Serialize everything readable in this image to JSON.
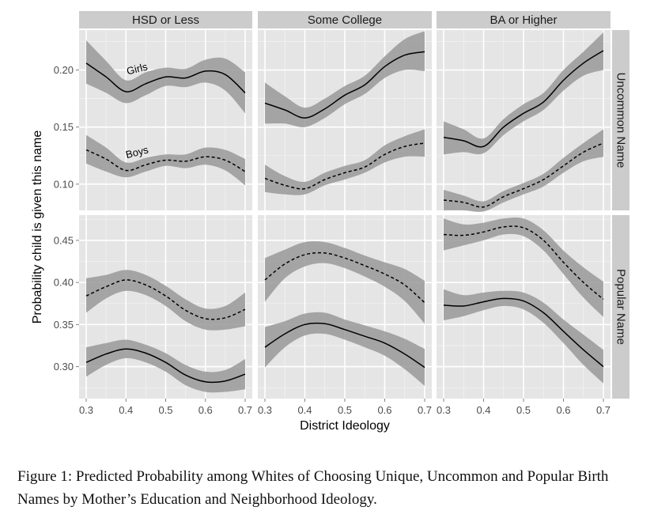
{
  "chart_data": {
    "type": "line",
    "layout": "facet-grid",
    "ylabel": "Probability child is given this name",
    "xlabel": "District Ideology",
    "columns": [
      "HSD or Less",
      "Some College",
      "BA or Higher"
    ],
    "rows": [
      "Uncommon Name",
      "Popular Name"
    ],
    "x_ticks": [
      "0.3",
      "0.4",
      "0.5",
      "0.6",
      "0.7"
    ],
    "xlim": [
      0.3,
      0.7
    ],
    "grid": true,
    "panels": [
      {
        "row": "Uncommon Name",
        "ylim": [
          0.077,
          0.235
        ],
        "y_ticks": [
          0.1,
          0.15,
          0.2
        ],
        "y_tick_labels": [
          "0.10",
          "0.15",
          "0.20"
        ],
        "annotations": [
          {
            "text": "Girls",
            "column": "HSD or Less",
            "x": 0.43,
            "y": 0.198
          },
          {
            "text": "Boys",
            "column": "HSD or Less",
            "x": 0.43,
            "y": 0.125
          }
        ]
      },
      {
        "row": "Popular Name",
        "ylim": [
          0.262,
          0.48
        ],
        "y_ticks": [
          0.3,
          0.35,
          0.4,
          0.45
        ],
        "y_tick_labels": [
          "0.30",
          "0.35",
          "0.40",
          "0.45"
        ],
        "annotations": []
      }
    ],
    "x": [
      0.3,
      0.35,
      0.4,
      0.45,
      0.5,
      0.55,
      0.6,
      0.65,
      0.7
    ],
    "series": [
      {
        "row": "Uncommon Name",
        "column": "HSD or Less",
        "linestyle": "solid",
        "values": [
          0.206,
          0.194,
          0.181,
          0.188,
          0.194,
          0.193,
          0.199,
          0.196,
          0.18
        ],
        "lower": [
          0.188,
          0.18,
          0.171,
          0.178,
          0.186,
          0.185,
          0.189,
          0.182,
          0.162
        ],
        "upper": [
          0.226,
          0.208,
          0.191,
          0.198,
          0.202,
          0.201,
          0.209,
          0.21,
          0.198
        ]
      },
      {
        "row": "Uncommon Name",
        "column": "HSD or Less",
        "linestyle": "dashed",
        "values": [
          0.13,
          0.122,
          0.112,
          0.117,
          0.121,
          0.12,
          0.124,
          0.121,
          0.111
        ],
        "lower": [
          0.118,
          0.111,
          0.106,
          0.111,
          0.116,
          0.114,
          0.117,
          0.112,
          0.099
        ],
        "upper": [
          0.143,
          0.132,
          0.119,
          0.123,
          0.126,
          0.126,
          0.132,
          0.13,
          0.122
        ]
      },
      {
        "row": "Uncommon Name",
        "column": "Some College",
        "linestyle": "solid",
        "values": [
          0.171,
          0.165,
          0.158,
          0.166,
          0.178,
          0.187,
          0.203,
          0.213,
          0.216
        ],
        "lower": [
          0.153,
          0.153,
          0.15,
          0.158,
          0.17,
          0.179,
          0.193,
          0.2,
          0.199
        ],
        "upper": [
          0.189,
          0.177,
          0.167,
          0.175,
          0.186,
          0.195,
          0.212,
          0.227,
          0.234
        ]
      },
      {
        "row": "Uncommon Name",
        "column": "Some College",
        "linestyle": "dashed",
        "values": [
          0.105,
          0.099,
          0.096,
          0.104,
          0.11,
          0.115,
          0.126,
          0.133,
          0.136
        ],
        "lower": [
          0.093,
          0.091,
          0.091,
          0.099,
          0.104,
          0.11,
          0.119,
          0.124,
          0.124
        ],
        "upper": [
          0.117,
          0.107,
          0.102,
          0.11,
          0.116,
          0.121,
          0.134,
          0.142,
          0.148
        ]
      },
      {
        "row": "Uncommon Name",
        "column": "BA or Higher",
        "linestyle": "solid",
        "values": [
          0.141,
          0.138,
          0.133,
          0.15,
          0.162,
          0.172,
          0.191,
          0.206,
          0.217
        ],
        "lower": [
          0.126,
          0.128,
          0.127,
          0.143,
          0.155,
          0.165,
          0.182,
          0.195,
          0.2
        ],
        "upper": [
          0.155,
          0.148,
          0.14,
          0.157,
          0.17,
          0.18,
          0.2,
          0.216,
          0.233
        ]
      },
      {
        "row": "Uncommon Name",
        "column": "BA or Higher",
        "linestyle": "dashed",
        "values": [
          0.086,
          0.084,
          0.08,
          0.089,
          0.096,
          0.104,
          0.116,
          0.128,
          0.136
        ],
        "lower": [
          0.077,
          0.077,
          0.076,
          0.084,
          0.091,
          0.098,
          0.11,
          0.12,
          0.124
        ],
        "upper": [
          0.095,
          0.09,
          0.085,
          0.094,
          0.101,
          0.109,
          0.123,
          0.136,
          0.148
        ]
      },
      {
        "row": "Popular Name",
        "column": "HSD or Less",
        "linestyle": "solid",
        "values": [
          0.305,
          0.315,
          0.321,
          0.316,
          0.305,
          0.29,
          0.282,
          0.283,
          0.291
        ],
        "lower": [
          0.288,
          0.302,
          0.31,
          0.305,
          0.294,
          0.278,
          0.27,
          0.27,
          0.273
        ],
        "upper": [
          0.323,
          0.328,
          0.332,
          0.326,
          0.316,
          0.302,
          0.294,
          0.296,
          0.309
        ]
      },
      {
        "row": "Popular Name",
        "column": "HSD or Less",
        "linestyle": "dashed",
        "values": [
          0.384,
          0.395,
          0.403,
          0.397,
          0.384,
          0.367,
          0.357,
          0.358,
          0.368
        ],
        "lower": [
          0.364,
          0.381,
          0.39,
          0.385,
          0.372,
          0.354,
          0.344,
          0.344,
          0.348
        ],
        "upper": [
          0.405,
          0.409,
          0.415,
          0.409,
          0.396,
          0.38,
          0.369,
          0.372,
          0.388
        ]
      },
      {
        "row": "Popular Name",
        "column": "Some College",
        "linestyle": "solid",
        "values": [
          0.323,
          0.339,
          0.35,
          0.351,
          0.344,
          0.336,
          0.328,
          0.315,
          0.299
        ],
        "lower": [
          0.299,
          0.323,
          0.337,
          0.339,
          0.332,
          0.323,
          0.313,
          0.297,
          0.277
        ],
        "upper": [
          0.347,
          0.354,
          0.363,
          0.364,
          0.356,
          0.349,
          0.342,
          0.333,
          0.321
        ]
      },
      {
        "row": "Popular Name",
        "column": "Some College",
        "linestyle": "dashed",
        "values": [
          0.403,
          0.422,
          0.433,
          0.435,
          0.429,
          0.42,
          0.41,
          0.397,
          0.376
        ],
        "lower": [
          0.377,
          0.405,
          0.419,
          0.423,
          0.417,
          0.407,
          0.395,
          0.378,
          0.351
        ],
        "upper": [
          0.429,
          0.439,
          0.448,
          0.448,
          0.441,
          0.432,
          0.424,
          0.416,
          0.402
        ]
      },
      {
        "row": "Popular Name",
        "column": "BA or Higher",
        "linestyle": "solid",
        "values": [
          0.373,
          0.372,
          0.377,
          0.381,
          0.378,
          0.364,
          0.342,
          0.32,
          0.3
        ],
        "lower": [
          0.355,
          0.36,
          0.367,
          0.372,
          0.368,
          0.352,
          0.328,
          0.302,
          0.28
        ],
        "upper": [
          0.392,
          0.385,
          0.388,
          0.39,
          0.388,
          0.376,
          0.356,
          0.338,
          0.32
        ]
      },
      {
        "row": "Popular Name",
        "column": "BA or Higher",
        "linestyle": "dashed",
        "values": [
          0.457,
          0.456,
          0.46,
          0.466,
          0.465,
          0.45,
          0.424,
          0.4,
          0.38
        ],
        "lower": [
          0.438,
          0.444,
          0.45,
          0.457,
          0.455,
          0.438,
          0.41,
          0.382,
          0.359
        ],
        "upper": [
          0.476,
          0.469,
          0.471,
          0.476,
          0.476,
          0.462,
          0.438,
          0.418,
          0.401
        ]
      }
    ]
  },
  "caption": "Figure 1: Predicted Probability among Whites of Choosing Unique, Uncommon and Popular Birth Names by Mother’s Education and Neighborhood Ideology.",
  "colors": {
    "panel_bg": "#e5e5e5",
    "strip_bg": "#cccccc",
    "grid": "#ffffff",
    "ribbon": "#999999",
    "line": "#000000"
  }
}
